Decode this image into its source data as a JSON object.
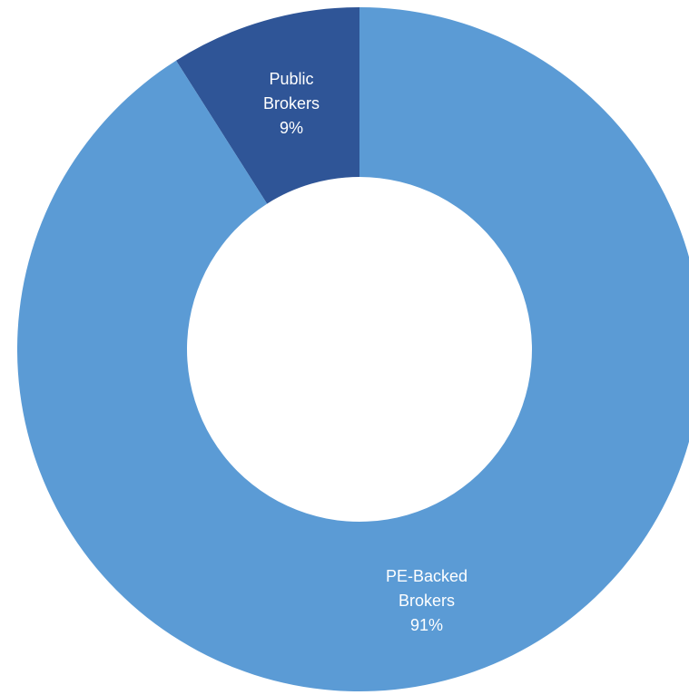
{
  "chart_data": {
    "type": "pie",
    "variant": "donut",
    "title": "",
    "series": [
      {
        "name": "",
        "slices": [
          {
            "label_lines": [
              "Public",
              "Brokers"
            ],
            "value_label": "9%",
            "value": 9,
            "color": "#2f5597"
          },
          {
            "label_lines": [
              "PE-Backed",
              "Brokers"
            ],
            "value_label": "91%",
            "value": 91,
            "color": "#5b9bd5"
          }
        ]
      }
    ],
    "start_angle_deg": 0,
    "direction": "counterclockwise",
    "legend": "none",
    "background": "#ffffff",
    "label_color": "#ffffff"
  }
}
